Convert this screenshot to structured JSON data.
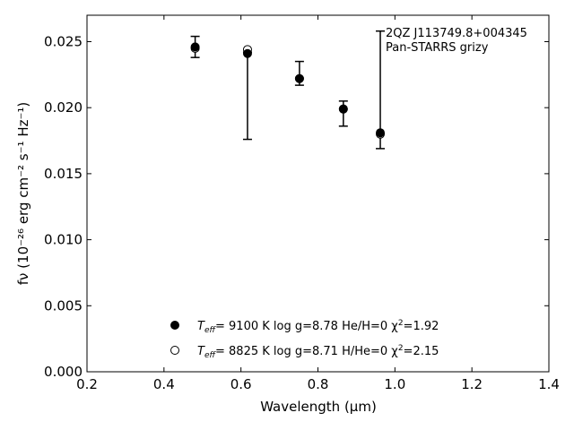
{
  "chart_data": {
    "type": "scatter",
    "title": "",
    "xlabel": "Wavelength (μm)",
    "ylabel": "fν (10⁻²⁶ erg cm⁻² s⁻¹ Hz⁻¹)",
    "xlim": [
      0.2,
      1.4
    ],
    "ylim": [
      0.0,
      0.027
    ],
    "xticks": [
      "0.2",
      "0.4",
      "0.6",
      "0.8",
      "1.0",
      "1.2",
      "1.4"
    ],
    "yticks": [
      "0.000",
      "0.005",
      "0.010",
      "0.015",
      "0.020",
      "0.025"
    ],
    "annotation": [
      "2QZ J113749.8+004345",
      "Pan-STARRS grizy"
    ],
    "observed": {
      "x": [
        0.481,
        0.617,
        0.752,
        0.866,
        0.962
      ],
      "y": [
        0.0246,
        0.0242,
        0.0222,
        0.0199,
        0.0181
      ],
      "yerr_low": [
        0.0238,
        0.0176,
        0.0217,
        0.0186,
        0.0169
      ],
      "yerr_high": [
        0.0254,
        0.0242,
        0.0235,
        0.0205,
        0.0258
      ]
    },
    "series": [
      {
        "marker": "filled-circle",
        "x": [
          0.481,
          0.617,
          0.752,
          0.866,
          0.962
        ],
        "y": [
          0.0246,
          0.0241,
          0.0222,
          0.0199,
          0.0181
        ],
        "label_parts": [
          "T",
          "eff",
          "=  9100 K  log g=8.78  He/H=0  χ",
          "2",
          "=1.92"
        ]
      },
      {
        "marker": "open-circle",
        "x": [
          0.481,
          0.617,
          0.752,
          0.866,
          0.962
        ],
        "y": [
          0.0245,
          0.0244,
          0.0222,
          0.0199,
          0.018
        ],
        "label_parts": [
          "T",
          "eff",
          "=  8825 K  log g=8.71  H/He=0  χ",
          "2",
          "=2.15"
        ]
      }
    ],
    "legend_position": "lower-center",
    "grid": false
  }
}
